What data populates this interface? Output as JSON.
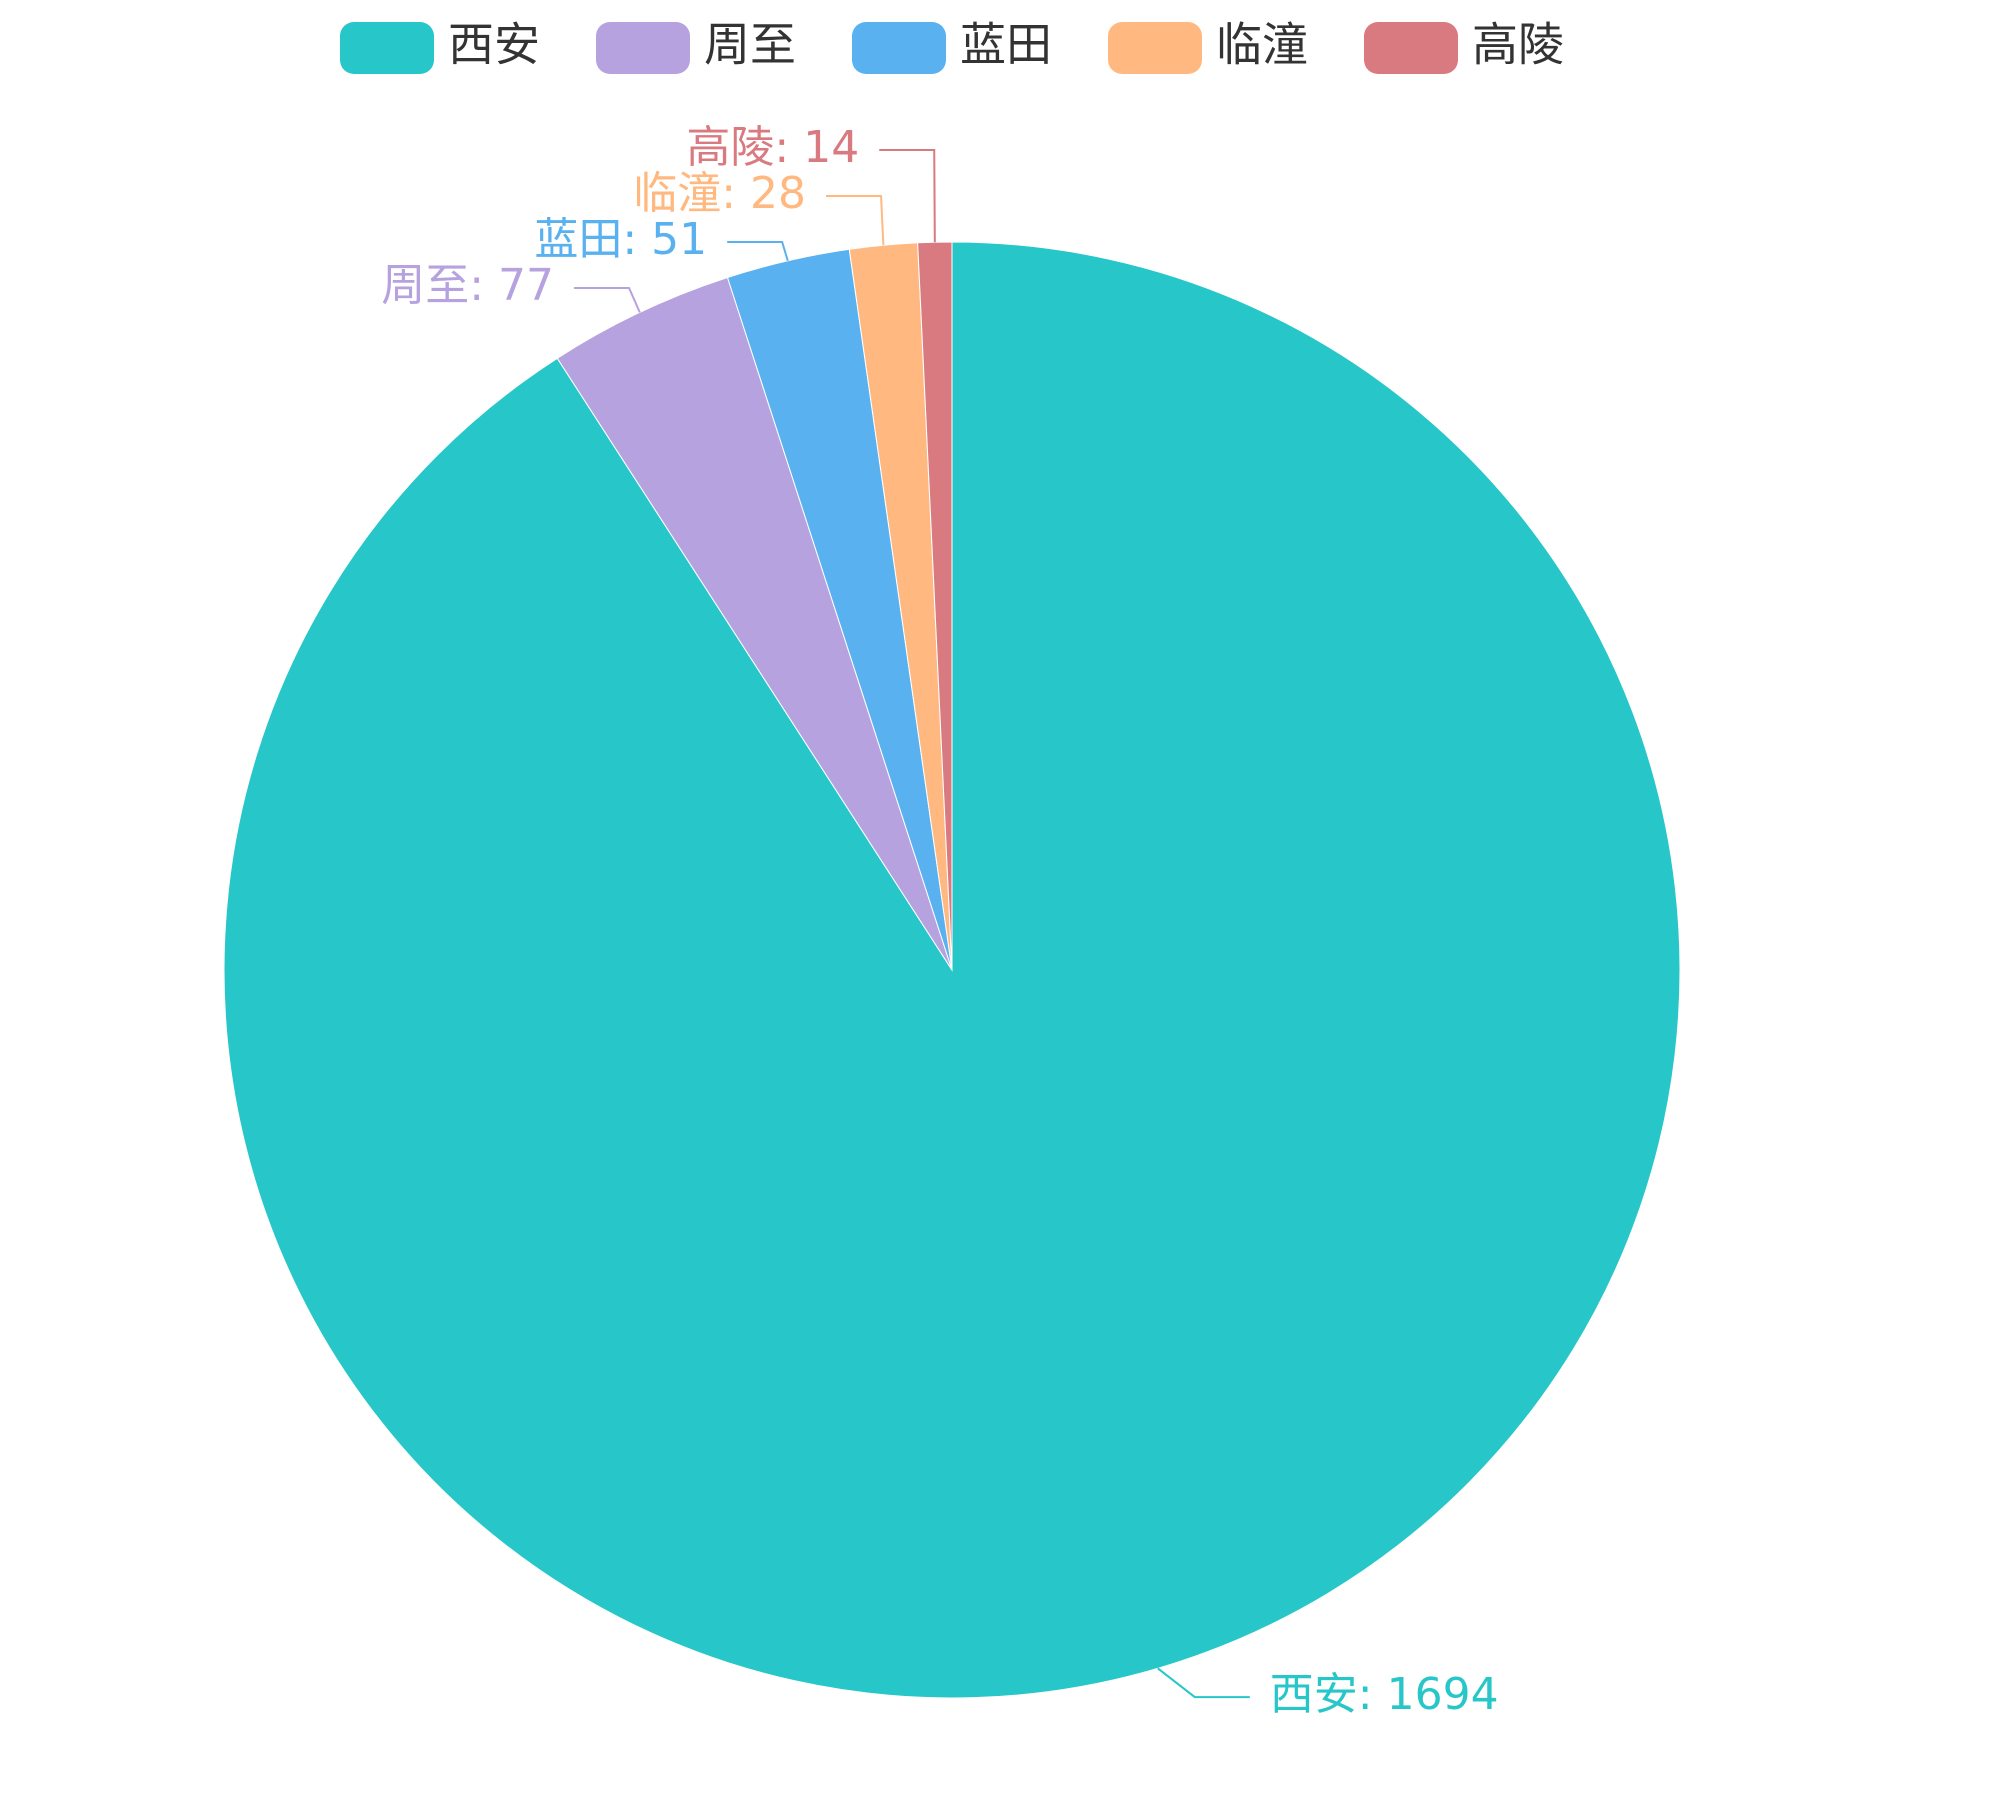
{
  "chart_data": {
    "type": "pie",
    "categories": [
      "西安",
      "周至",
      "蓝田",
      "临潼",
      "高陵"
    ],
    "values": [
      1694,
      77,
      51,
      28,
      14
    ],
    "value_labels": [
      "西安: 1694",
      "周至: 77",
      "蓝田: 51",
      "临潼: 28",
      "高陵: 14"
    ],
    "colors": [
      "#27c6c8",
      "#b6a2de",
      "#5ab1ef",
      "#ffb980",
      "#d87a80"
    ],
    "legend": "top"
  }
}
